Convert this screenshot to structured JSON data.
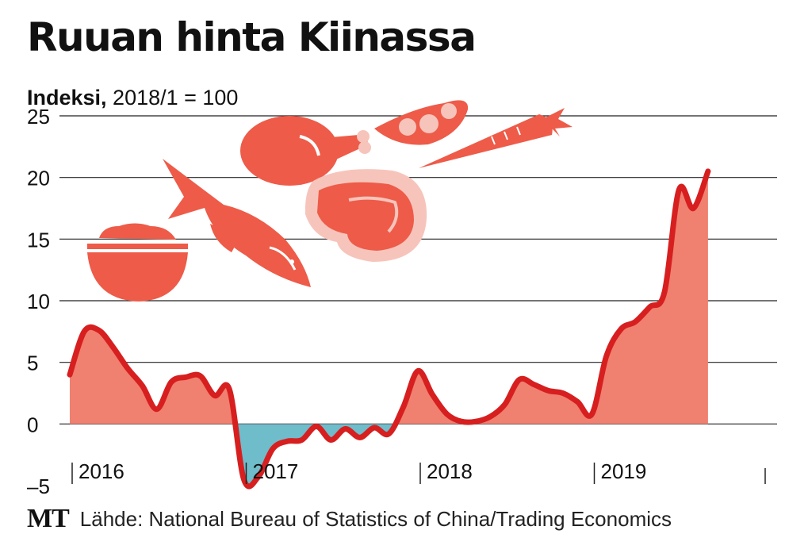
{
  "chart_data": {
    "type": "area",
    "title": "Ruuan hinta Kiinassa",
    "subtitle_bold": "Indeksi,",
    "subtitle_rest": " 2018/1 = 100",
    "ylim": [
      -5,
      25
    ],
    "yticks": [
      25,
      20,
      15,
      10,
      5,
      0,
      -5
    ],
    "xlim": [
      2016.0,
      2020.0
    ],
    "year_labels": [
      {
        "x": 2016,
        "label": "2016"
      },
      {
        "x": 2017,
        "label": "2017"
      },
      {
        "x": 2018,
        "label": "2018"
      },
      {
        "x": 2019,
        "label": "2019"
      }
    ],
    "series": [
      {
        "values": [
          [
            2016.0,
            4.0
          ],
          [
            2016.083,
            7.5
          ],
          [
            2016.167,
            7.6
          ],
          [
            2016.25,
            6.2
          ],
          [
            2016.333,
            4.5
          ],
          [
            2016.417,
            3.1
          ],
          [
            2016.5,
            1.2
          ],
          [
            2016.583,
            3.4
          ],
          [
            2016.667,
            3.8
          ],
          [
            2016.75,
            3.9
          ],
          [
            2016.833,
            2.3
          ],
          [
            2016.917,
            2.8
          ],
          [
            2017.0,
            -4.5
          ],
          [
            2017.083,
            -4.3
          ],
          [
            2017.167,
            -2.0
          ],
          [
            2017.25,
            -1.4
          ],
          [
            2017.333,
            -1.3
          ],
          [
            2017.417,
            -0.2
          ],
          [
            2017.5,
            -1.3
          ],
          [
            2017.583,
            -0.4
          ],
          [
            2017.667,
            -1.1
          ],
          [
            2017.75,
            -0.3
          ],
          [
            2017.833,
            -0.8
          ],
          [
            2017.917,
            1.4
          ],
          [
            2018.0,
            4.3
          ],
          [
            2018.083,
            2.4
          ],
          [
            2018.167,
            0.8
          ],
          [
            2018.25,
            0.2
          ],
          [
            2018.333,
            0.2
          ],
          [
            2018.417,
            0.6
          ],
          [
            2018.5,
            1.6
          ],
          [
            2018.583,
            3.6
          ],
          [
            2018.667,
            3.2
          ],
          [
            2018.75,
            2.7
          ],
          [
            2018.833,
            2.5
          ],
          [
            2018.917,
            1.8
          ],
          [
            2019.0,
            0.8
          ],
          [
            2019.083,
            5.5
          ],
          [
            2019.167,
            7.7
          ],
          [
            2019.25,
            8.3
          ],
          [
            2019.333,
            9.5
          ],
          [
            2019.417,
            10.7
          ],
          [
            2019.5,
            19.0
          ],
          [
            2019.583,
            17.5
          ],
          [
            2019.667,
            20.5
          ]
        ]
      }
    ],
    "colors": {
      "line": "#d71f1f",
      "positive_fill": "#f08070",
      "negative_fill": "#6fbccb",
      "grid": "#222222",
      "icon": "#ee5b49",
      "icon_light": "#f7c4bb"
    },
    "decorative_icons": [
      "rice-bowl-icon",
      "fish-icon",
      "chicken-leg-icon",
      "steak-icon",
      "pea-pod-icon",
      "carrot-icon"
    ],
    "grid": true,
    "legend": "none"
  },
  "footer": {
    "logo": "MT",
    "source": "Lähde: National Bureau of Statistics of China/Trading Economics"
  }
}
